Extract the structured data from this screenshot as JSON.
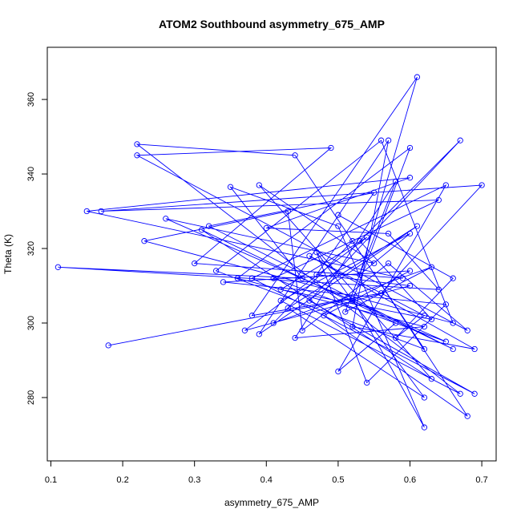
{
  "chart_data": {
    "type": "line",
    "title": "ATOM2 Southbound asymmetry_675_AMP",
    "xlabel": "asymmetry_675_AMP",
    "ylabel": "Theta (K)",
    "xlim": [
      0.095,
      0.72
    ],
    "ylim": [
      263,
      374
    ],
    "xticks": [
      0.1,
      0.2,
      0.3,
      0.4,
      0.5,
      0.6,
      0.7
    ],
    "yticks": [
      280,
      300,
      320,
      340,
      360
    ],
    "grid": false,
    "legend": "none",
    "series_color": "#0000ff",
    "points": [
      [
        0.18,
        294
      ],
      [
        0.52,
        306.5
      ],
      [
        0.62,
        272
      ],
      [
        0.5,
        326
      ],
      [
        0.35,
        336.5
      ],
      [
        0.45,
        312
      ],
      [
        0.11,
        315
      ],
      [
        0.64,
        309
      ],
      [
        0.57,
        324
      ],
      [
        0.4,
        325.5
      ],
      [
        0.6,
        339
      ],
      [
        0.15,
        330
      ],
      [
        0.59,
        312
      ],
      [
        0.3,
        316
      ],
      [
        0.49,
        347
      ],
      [
        0.22,
        345
      ],
      [
        0.68,
        298
      ],
      [
        0.57,
        316
      ],
      [
        0.45,
        298
      ],
      [
        0.43,
        330
      ],
      [
        0.23,
        322
      ],
      [
        0.66,
        300
      ],
      [
        0.56,
        349
      ],
      [
        0.33,
        314
      ],
      [
        0.62,
        293
      ],
      [
        0.44,
        345
      ],
      [
        0.22,
        348
      ],
      [
        0.67,
        281
      ],
      [
        0.42,
        306
      ],
      [
        0.6,
        324
      ],
      [
        0.53,
        313
      ],
      [
        0.61,
        366
      ],
      [
        0.38,
        302
      ],
      [
        0.56,
        308
      ],
      [
        0.7,
        337
      ],
      [
        0.17,
        330
      ],
      [
        0.64,
        333
      ],
      [
        0.41,
        312
      ],
      [
        0.65,
        295
      ],
      [
        0.26,
        328
      ],
      [
        0.55,
        316
      ],
      [
        0.39,
        337
      ],
      [
        0.63,
        285
      ],
      [
        0.31,
        325
      ],
      [
        0.58,
        300
      ],
      [
        0.5,
        287
      ],
      [
        0.65,
        337
      ],
      [
        0.38,
        312
      ],
      [
        0.69,
        281
      ],
      [
        0.46,
        306
      ],
      [
        0.67,
        349
      ],
      [
        0.53,
        322
      ],
      [
        0.63,
        301
      ],
      [
        0.42,
        309
      ],
      [
        0.54,
        323
      ],
      [
        0.37,
        298
      ],
      [
        0.6,
        310
      ],
      [
        0.47,
        313
      ],
      [
        0.55,
        335
      ],
      [
        0.32,
        326
      ],
      [
        0.66,
        293
      ],
      [
        0.52,
        306
      ],
      [
        0.6,
        347
      ],
      [
        0.36,
        312
      ],
      [
        0.62,
        299
      ],
      [
        0.44,
        296
      ],
      [
        0.58,
        338
      ],
      [
        0.51,
        303
      ],
      [
        0.63,
        315
      ],
      [
        0.41,
        300
      ],
      [
        0.52,
        322
      ],
      [
        0.68,
        275
      ],
      [
        0.48,
        302
      ],
      [
        0.6,
        314
      ],
      [
        0.34,
        311
      ],
      [
        0.65,
        305
      ],
      [
        0.54,
        284
      ],
      [
        0.47,
        319
      ],
      [
        0.62,
        280
      ],
      [
        0.43,
        304
      ],
      [
        0.61,
        326
      ],
      [
        0.39,
        297
      ],
      [
        0.57,
        349
      ],
      [
        0.52,
        299
      ],
      [
        0.69,
        293
      ],
      [
        0.46,
        318
      ],
      [
        0.62,
        302
      ],
      [
        0.58,
        296
      ],
      [
        0.66,
        312
      ],
      [
        0.5,
        329
      ]
    ]
  }
}
